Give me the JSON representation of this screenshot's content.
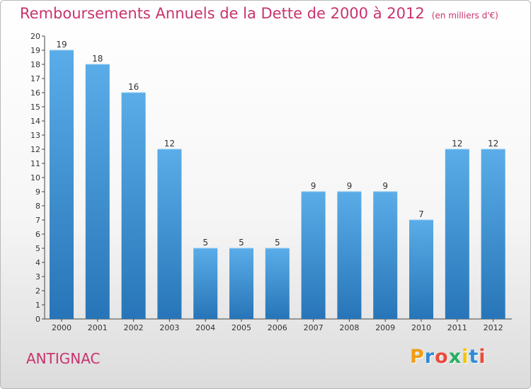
{
  "header": {
    "title": "Remboursements Annuels de la Dette de 2000 à 2012",
    "unit": "(en milliers d'€)"
  },
  "footer": {
    "commune": "ANTIGNAC",
    "logo_text": "Proxiti",
    "logo_colors": [
      "#f39c12",
      "#2e8bd8",
      "#e74c3c",
      "#27ae60",
      "#f1c40f",
      "#2e8bd8",
      "#e74c3c"
    ]
  },
  "chart_data": {
    "type": "bar",
    "categories": [
      "2000",
      "2001",
      "2002",
      "2003",
      "2004",
      "2005",
      "2006",
      "2007",
      "2008",
      "2009",
      "2010",
      "2011",
      "2012"
    ],
    "values": [
      19,
      18,
      16,
      12,
      5,
      5,
      5,
      9,
      9,
      9,
      7,
      12,
      12
    ],
    "title": "Remboursements Annuels de la Dette de 2000 à 2012",
    "xlabel": "",
    "ylabel": "",
    "ylim": [
      0,
      20
    ],
    "yticks": [
      0,
      1,
      2,
      3,
      4,
      5,
      6,
      7,
      8,
      9,
      10,
      11,
      12,
      13,
      14,
      15,
      16,
      17,
      18,
      19,
      20
    ],
    "grid": false,
    "legend": "none",
    "bar_color_top": "#5aade8",
    "bar_color_bottom": "#2775b8"
  }
}
